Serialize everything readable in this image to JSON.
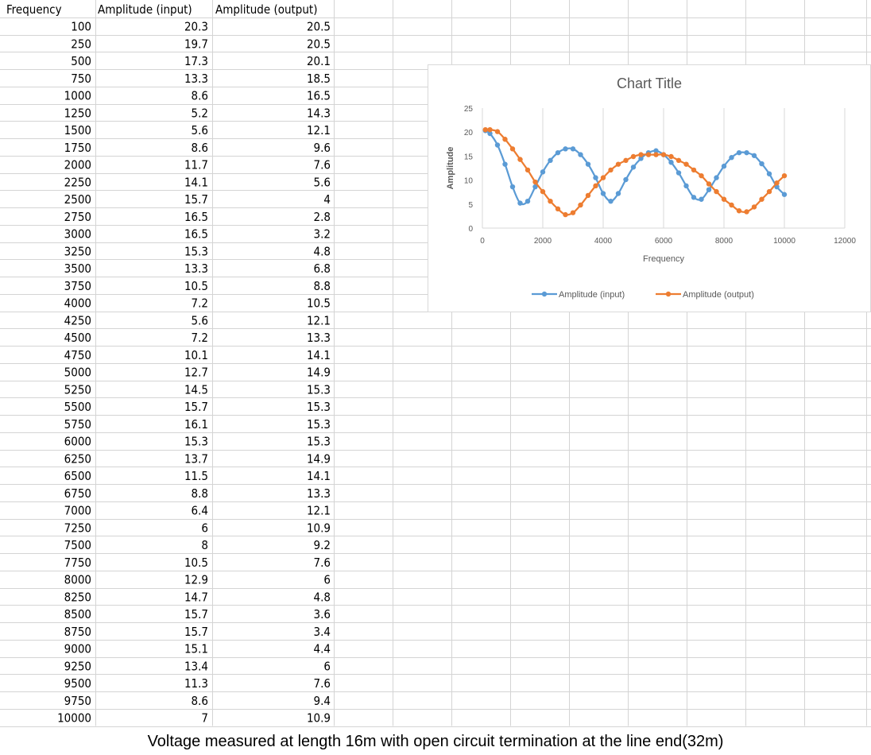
{
  "sheet": {
    "headers": [
      "Frequency",
      "Amplitude (input)",
      "Amplitude (output)"
    ],
    "rows": [
      [
        "100",
        "20.3",
        "20.5"
      ],
      [
        "250",
        "19.7",
        "20.5"
      ],
      [
        "500",
        "17.3",
        "20.1"
      ],
      [
        "750",
        "13.3",
        "18.5"
      ],
      [
        "1000",
        "8.6",
        "16.5"
      ],
      [
        "1250",
        "5.2",
        "14.3"
      ],
      [
        "1500",
        "5.6",
        "12.1"
      ],
      [
        "1750",
        "8.6",
        "9.6"
      ],
      [
        "2000",
        "11.7",
        "7.6"
      ],
      [
        "2250",
        "14.1",
        "5.6"
      ],
      [
        "2500",
        "15.7",
        "4"
      ],
      [
        "2750",
        "16.5",
        "2.8"
      ],
      [
        "3000",
        "16.5",
        "3.2"
      ],
      [
        "3250",
        "15.3",
        "4.8"
      ],
      [
        "3500",
        "13.3",
        "6.8"
      ],
      [
        "3750",
        "10.5",
        "8.8"
      ],
      [
        "4000",
        "7.2",
        "10.5"
      ],
      [
        "4250",
        "5.6",
        "12.1"
      ],
      [
        "4500",
        "7.2",
        "13.3"
      ],
      [
        "4750",
        "10.1",
        "14.1"
      ],
      [
        "5000",
        "12.7",
        "14.9"
      ],
      [
        "5250",
        "14.5",
        "15.3"
      ],
      [
        "5500",
        "15.7",
        "15.3"
      ],
      [
        "5750",
        "16.1",
        "15.3"
      ],
      [
        "6000",
        "15.3",
        "15.3"
      ],
      [
        "6250",
        "13.7",
        "14.9"
      ],
      [
        "6500",
        "11.5",
        "14.1"
      ],
      [
        "6750",
        "8.8",
        "13.3"
      ],
      [
        "7000",
        "6.4",
        "12.1"
      ],
      [
        "7250",
        "6",
        "10.9"
      ],
      [
        "7500",
        "8",
        "9.2"
      ],
      [
        "7750",
        "10.5",
        "7.6"
      ],
      [
        "8000",
        "12.9",
        "6"
      ],
      [
        "8250",
        "14.7",
        "4.8"
      ],
      [
        "8500",
        "15.7",
        "3.6"
      ],
      [
        "8750",
        "15.7",
        "3.4"
      ],
      [
        "9000",
        "15.1",
        "4.4"
      ],
      [
        "9250",
        "13.4",
        "6"
      ],
      [
        "9500",
        "11.3",
        "7.6"
      ],
      [
        "9750",
        "8.6",
        "9.4"
      ],
      [
        "10000",
        "7",
        "10.9"
      ]
    ]
  },
  "caption": "Voltage measured at length 16m with open circuit termination at the line end(32m)",
  "colors": {
    "input": "#5b9bd5",
    "output": "#ed7d31",
    "grid": "#d9d9d9",
    "cellgrid": "#d4d4d4"
  },
  "chart_data": {
    "type": "scatter",
    "title": "Chart Title",
    "xlabel": "Frequency",
    "ylabel": "Amplitude",
    "xlim": [
      0,
      12000
    ],
    "ylim": [
      0,
      25
    ],
    "xticks": [
      "0",
      "2000",
      "4000",
      "6000",
      "8000",
      "10000",
      "12000"
    ],
    "yticks": [
      "0",
      "5",
      "10",
      "15",
      "20",
      "25"
    ],
    "grid": "vertical",
    "legend_position": "bottom",
    "smooth_lines": true,
    "x": [
      100,
      250,
      500,
      750,
      1000,
      1250,
      1500,
      1750,
      2000,
      2250,
      2500,
      2750,
      3000,
      3250,
      3500,
      3750,
      4000,
      4250,
      4500,
      4750,
      5000,
      5250,
      5500,
      5750,
      6000,
      6250,
      6500,
      6750,
      7000,
      7250,
      7500,
      7750,
      8000,
      8250,
      8500,
      8750,
      9000,
      9250,
      9500,
      9750,
      10000
    ],
    "series": [
      {
        "name": "Amplitude (input)",
        "color": "#5b9bd5",
        "values": [
          20.3,
          19.7,
          17.3,
          13.3,
          8.6,
          5.2,
          5.6,
          8.6,
          11.7,
          14.1,
          15.7,
          16.5,
          16.5,
          15.3,
          13.3,
          10.5,
          7.2,
          5.6,
          7.2,
          10.1,
          12.7,
          14.5,
          15.7,
          16.1,
          15.3,
          13.7,
          11.5,
          8.8,
          6.4,
          6,
          8,
          10.5,
          12.9,
          14.7,
          15.7,
          15.7,
          15.1,
          13.4,
          11.3,
          8.6,
          7
        ]
      },
      {
        "name": "Amplitude (output)",
        "color": "#ed7d31",
        "values": [
          20.5,
          20.5,
          20.1,
          18.5,
          16.5,
          14.3,
          12.1,
          9.6,
          7.6,
          5.6,
          4,
          2.8,
          3.2,
          4.8,
          6.8,
          8.8,
          10.5,
          12.1,
          13.3,
          14.1,
          14.9,
          15.3,
          15.3,
          15.3,
          15.3,
          14.9,
          14.1,
          13.3,
          12.1,
          10.9,
          9.2,
          7.6,
          6,
          4.8,
          3.6,
          3.4,
          4.4,
          6,
          7.6,
          9.4,
          10.9
        ]
      }
    ]
  }
}
